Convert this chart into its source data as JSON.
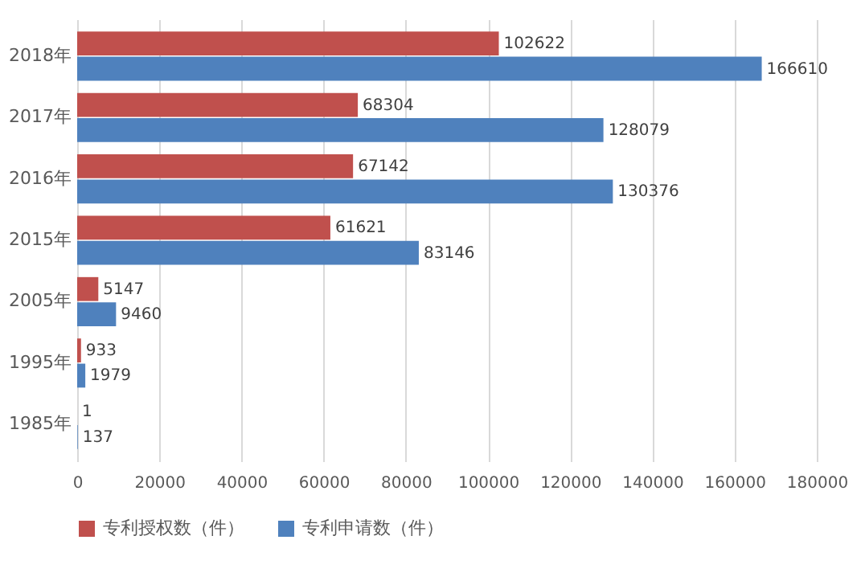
{
  "chart_data": {
    "type": "bar",
    "orientation": "horizontal",
    "categories": [
      "2018年",
      "2017年",
      "2016年",
      "2015年",
      "2005年",
      "1995年",
      "1985年"
    ],
    "series": [
      {
        "name": "专利授权数（件）",
        "color": "#c0504d",
        "values": [
          102622,
          68304,
          67142,
          61621,
          5147,
          933,
          1
        ]
      },
      {
        "name": "专利申请数（件）",
        "color": "#4f81bd",
        "values": [
          166610,
          128079,
          130376,
          83146,
          9460,
          1979,
          137
        ]
      }
    ],
    "xlim": [
      0,
      180000
    ],
    "xticks": [
      0,
      20000,
      40000,
      60000,
      80000,
      100000,
      120000,
      140000,
      160000,
      180000
    ],
    "grid": "x",
    "legend": "bottom",
    "data_labels": true
  }
}
